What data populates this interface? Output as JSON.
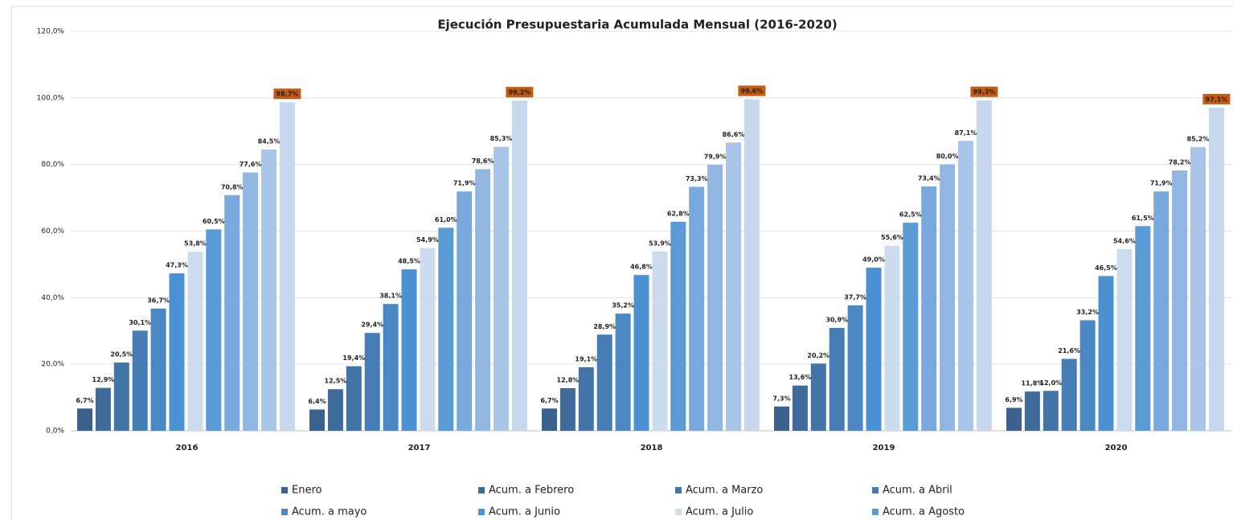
{
  "chart_data": {
    "type": "bar",
    "title": "Ejecución Presupuestaria Acumulada Mensual (2016-2020)",
    "categories": [
      "2016",
      "2017",
      "2018",
      "2019",
      "2020"
    ],
    "ylim": [
      0,
      120
    ],
    "yticks": [
      {
        "value": 0,
        "label": "0,0%"
      },
      {
        "value": 20,
        "label": "20,0%"
      },
      {
        "value": 40,
        "label": "40,0%"
      },
      {
        "value": 60,
        "label": "60,0%"
      },
      {
        "value": 80,
        "label": "80,0%"
      },
      {
        "value": 100,
        "label": "100,0%"
      },
      {
        "value": 120,
        "label": "120,0%"
      }
    ],
    "grid": true,
    "legend": "bottom",
    "series": [
      {
        "name": "Enero",
        "color": "#3b628c",
        "values": [
          6.7,
          6.4,
          6.7,
          7.3,
          6.9
        ],
        "value_labels": [
          "6,7%",
          "6,4%",
          "6,7%",
          "7,3%",
          "6,9%"
        ]
      },
      {
        "name": "Acum. a Febrero",
        "color": "#3e6b99",
        "values": [
          12.9,
          12.5,
          12.8,
          13.6,
          11.8
        ],
        "value_labels": [
          "12,9%",
          "12,5%",
          "12,8%",
          "13,6%",
          "11,8%"
        ]
      },
      {
        "name": "Acum. a Marzo",
        "color": "#4274a7",
        "values": [
          20.5,
          19.4,
          19.1,
          20.2,
          12.0
        ],
        "value_labels": [
          "20,5%",
          "19,4%",
          "19,1%",
          "20,2%",
          "12,0%"
        ]
      },
      {
        "name": "Acum. a Abril",
        "color": "#467db5",
        "values": [
          30.1,
          29.4,
          28.9,
          30.9,
          21.6
        ],
        "value_labels": [
          "30,1%",
          "29,4%",
          "28,9%",
          "30,9%",
          "21,6%"
        ]
      },
      {
        "name": "Acum. a mayo",
        "color": "#4a87c4",
        "values": [
          36.7,
          38.1,
          35.2,
          37.7,
          33.2
        ],
        "value_labels": [
          "36,7%",
          "38,1%",
          "35,2%",
          "37,7%",
          "33,2%"
        ]
      },
      {
        "name": "Acum. a Junio",
        "color": "#4c92d3",
        "values": [
          47.3,
          48.5,
          46.8,
          49.0,
          46.5
        ],
        "value_labels": [
          "47,3%",
          "48,5%",
          "46,8%",
          "49,0%",
          "46,5%"
        ]
      },
      {
        "name": "Acum. a Julio",
        "color": "#cddbee",
        "values": [
          53.8,
          54.9,
          53.9,
          55.6,
          54.6
        ],
        "value_labels": [
          "53,8%",
          "54,9%",
          "53,9%",
          "55,6%",
          "54,6%"
        ]
      },
      {
        "name": "Acum. a Agosto",
        "color": "#5a9ad5",
        "values": [
          60.5,
          61.0,
          62.8,
          62.5,
          61.5
        ],
        "value_labels": [
          "60,5%",
          "61,0%",
          "62,8%",
          "62,5%",
          "61,5%"
        ]
      },
      {
        "name": null,
        "color": "#79a9dc",
        "values": [
          70.8,
          71.9,
          73.3,
          73.4,
          71.9
        ],
        "value_labels": [
          "70,8%",
          "71,9%",
          "73,3%",
          "73,4%",
          "71,9%"
        ]
      },
      {
        "name": null,
        "color": "#90b6e1",
        "values": [
          77.6,
          78.6,
          79.9,
          80.0,
          78.2
        ],
        "value_labels": [
          "77,6%",
          "78,6%",
          "79,9%",
          "80,0%",
          "78,2%"
        ]
      },
      {
        "name": null,
        "color": "#a9c5e8",
        "values": [
          84.5,
          85.3,
          86.6,
          87.1,
          85.2
        ],
        "value_labels": [
          "84,5%",
          "85,3%",
          "86,6%",
          "87,1%",
          "85,2%"
        ]
      },
      {
        "name": null,
        "color": "#c6d7ee",
        "label_background": "#c55a11",
        "values": [
          98.7,
          99.2,
          99.6,
          99.3,
          97.1
        ],
        "value_labels": [
          "98,7%",
          "99,2%",
          "99,6%",
          "99,3%",
          "97,1%"
        ]
      }
    ]
  }
}
